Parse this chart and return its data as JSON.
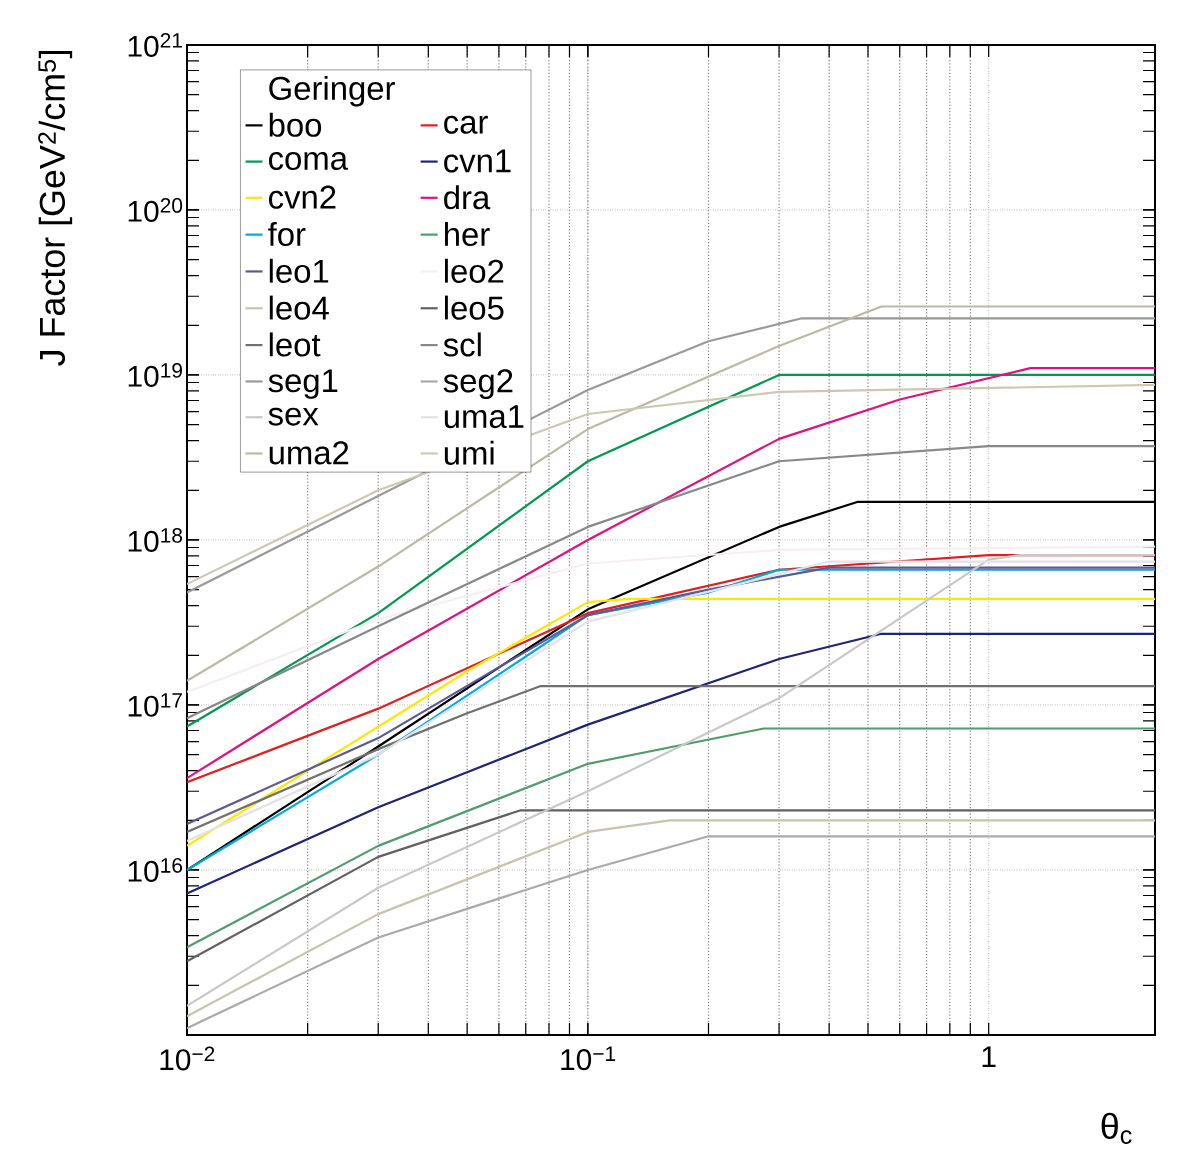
{
  "chart_data": {
    "type": "line",
    "xlabel": "θ$_{c}$",
    "ylabel": "J Factor [GeV$^{2}$/cm$^{5}$]",
    "legend_title": "Geringer",
    "log": "xy",
    "grid": true,
    "legend": "top left",
    "marker": "none",
    "line_style": "solid",
    "xlim": [
      0.01,
      2.6
    ],
    "ylim": [
      1000000000000000.0,
      1e+21
    ],
    "xticks": [
      {
        "value": 0.01,
        "label": "10$^{−2}$"
      },
      {
        "value": 0.1,
        "label": "10$^{−1}$"
      },
      1
    ],
    "yticks": [
      {
        "value": 1000000000000000.0,
        "label": null
      },
      {
        "value": 1e+16,
        "label": "10$^{16}$"
      },
      {
        "value": 1e+17,
        "label": "10$^{17}$"
      },
      {
        "value": 1e+18,
        "label": "10$^{18}$"
      },
      {
        "value": 1e+19,
        "label": "10$^{19}$"
      },
      {
        "value": 1e+20,
        "label": "10$^{20}$"
      },
      {
        "value": 1e+21,
        "label": "10$^{21}$"
      }
    ],
    "series": [
      {
        "name": "boo",
        "color": "#000000",
        "x": [
          0.01,
          0.03,
          0.1,
          0.3,
          0.47,
          2.6
        ],
        "values": [
          1e+16,
          5.6e+16,
          3.8e+17,
          1.2e+18,
          1.7e+18,
          1.7e+18
        ]
      },
      {
        "name": "car",
        "color": "#e0201e",
        "x": [
          0.01,
          0.03,
          0.1,
          0.3,
          1.0,
          2.6
        ],
        "values": [
          3.4e+16,
          9.5e+16,
          3.6e+17,
          6.6e+17,
          8.1e+17,
          8.1e+17
        ]
      },
      {
        "name": "coma",
        "color": "#009a4e",
        "x": [
          0.01,
          0.03,
          0.1,
          0.3,
          2.6
        ],
        "values": [
          7.4e+16,
          3.6e+17,
          3e+18,
          1e+19,
          1e+19
        ]
      },
      {
        "name": "cvn1",
        "color": "#1f2477",
        "x": [
          0.01,
          0.03,
          0.1,
          0.3,
          0.54,
          2.6
        ],
        "values": [
          7200000000000000.0,
          2.4e+16,
          7.6e+16,
          1.9e+17,
          2.7e+17,
          2.7e+17
        ]
      },
      {
        "name": "cvn2",
        "color": "#ffe800",
        "x": [
          0.01,
          0.05,
          0.1,
          0.127,
          2.6
        ],
        "values": [
          1.4e+16,
          1.6e+17,
          4.2e+17,
          4.4e+17,
          4.4e+17
        ]
      },
      {
        "name": "dra",
        "color": "#e0107f",
        "x": [
          0.01,
          0.03,
          0.1,
          0.3,
          0.6,
          1.27,
          2.6
        ],
        "values": [
          3.6e+16,
          1.9e+17,
          1e+18,
          4.1e+18,
          7.1e+18,
          1.1e+19,
          1.1e+19
        ]
      },
      {
        "name": "for",
        "color": "#00a9e0",
        "x": [
          0.01,
          0.03,
          0.1,
          0.2,
          0.3,
          2.6
        ],
        "values": [
          1e+16,
          5e+16,
          3.5e+17,
          4.8e+17,
          6.6e+17,
          6.6e+17
        ]
      },
      {
        "name": "her",
        "color": "#4e9d6b",
        "x": [
          0.01,
          0.03,
          0.1,
          0.275,
          2.6
        ],
        "values": [
          3400000000000000.0,
          1.4e+16,
          4.4e+16,
          7.2e+16,
          7.2e+16
        ]
      },
      {
        "name": "leo1",
        "color": "#5a5a96",
        "x": [
          0.01,
          0.03,
          0.1,
          0.2,
          0.4,
          2.6
        ],
        "values": [
          1.9e+16,
          6.3e+16,
          3.5e+17,
          5e+17,
          6.8e+17,
          6.8e+17
        ]
      },
      {
        "name": "leo2",
        "color": "#f8eef2",
        "x": [
          0.01,
          0.03,
          0.1,
          0.3,
          2.6
        ],
        "values": [
          1.2e+17,
          3.3e+17,
          7.2e+17,
          8.7e+17,
          9.1e+17
        ]
      },
      {
        "name": "leo4",
        "color": "#c8c2ae",
        "x": [
          0.01,
          0.03,
          0.1,
          0.16,
          2.6
        ],
        "values": [
          1300000000000000.0,
          5400000000000000.0,
          1.7e+16,
          2e+16,
          2e+16
        ]
      },
      {
        "name": "leo5",
        "color": "#616161",
        "x": [
          0.01,
          0.03,
          0.068,
          2.6
        ],
        "values": [
          2800000000000000.0,
          1.2e+16,
          2.3e+16,
          2.3e+16
        ]
      },
      {
        "name": "leot",
        "color": "#707070",
        "x": [
          0.01,
          0.03,
          0.05,
          0.076,
          2.6
        ],
        "values": [
          1.7e+16,
          5.4e+16,
          8.9e+16,
          1.3e+17,
          1.3e+17
        ]
      },
      {
        "name": "scl",
        "color": "#888888",
        "x": [
          0.01,
          0.03,
          0.1,
          0.3,
          1.0,
          2.6
        ],
        "values": [
          8.3e+16,
          3e+17,
          1.2e+18,
          3e+18,
          3.7e+18,
          3.7e+18
        ]
      },
      {
        "name": "seg1",
        "color": "#999999",
        "x": [
          0.01,
          0.1,
          0.2,
          0.34,
          2.6
        ],
        "values": [
          4.8e+17,
          8.1e+18,
          1.6e+19,
          2.2e+19,
          2.2e+19
        ]
      },
      {
        "name": "seg2",
        "color": "#aaaaaa",
        "x": [
          0.01,
          0.03,
          0.1,
          0.2,
          2.6
        ],
        "values": [
          1100000000000000.0,
          3900000000000000.0,
          1e+16,
          1.6e+16,
          1.6e+16
        ]
      },
      {
        "name": "sex",
        "color": "#c8c8c8",
        "x": [
          0.01,
          0.03,
          0.1,
          0.3,
          1.0,
          1.2,
          2.6
        ],
        "values": [
          1500000000000000.0,
          7800000000000000.0,
          3e+16,
          1.1e+17,
          7.6e+17,
          8.1e+17,
          8.1e+17
        ]
      },
      {
        "name": "uma1",
        "color": "#e2e2e8",
        "x": [
          0.01,
          0.03,
          0.1,
          0.4,
          2.6
        ],
        "values": [
          1.5e+16,
          5e+16,
          3.2e+17,
          7.4e+17,
          7.4e+17
        ]
      },
      {
        "name": "uma2",
        "color": "#bdb8a6",
        "x": [
          0.01,
          0.03,
          0.1,
          0.3,
          0.54,
          2.6
        ],
        "values": [
          1.4e+17,
          6.9e+17,
          4.7e+18,
          1.5e+19,
          2.6e+19,
          2.6e+19
        ]
      },
      {
        "name": "umi",
        "color": "#cdc8b4",
        "x": [
          0.01,
          0.03,
          0.1,
          0.3,
          2.6
        ],
        "values": [
          5.4e+17,
          2e+18,
          5.8e+18,
          7.9e+18,
          8.7e+18
        ]
      }
    ]
  }
}
